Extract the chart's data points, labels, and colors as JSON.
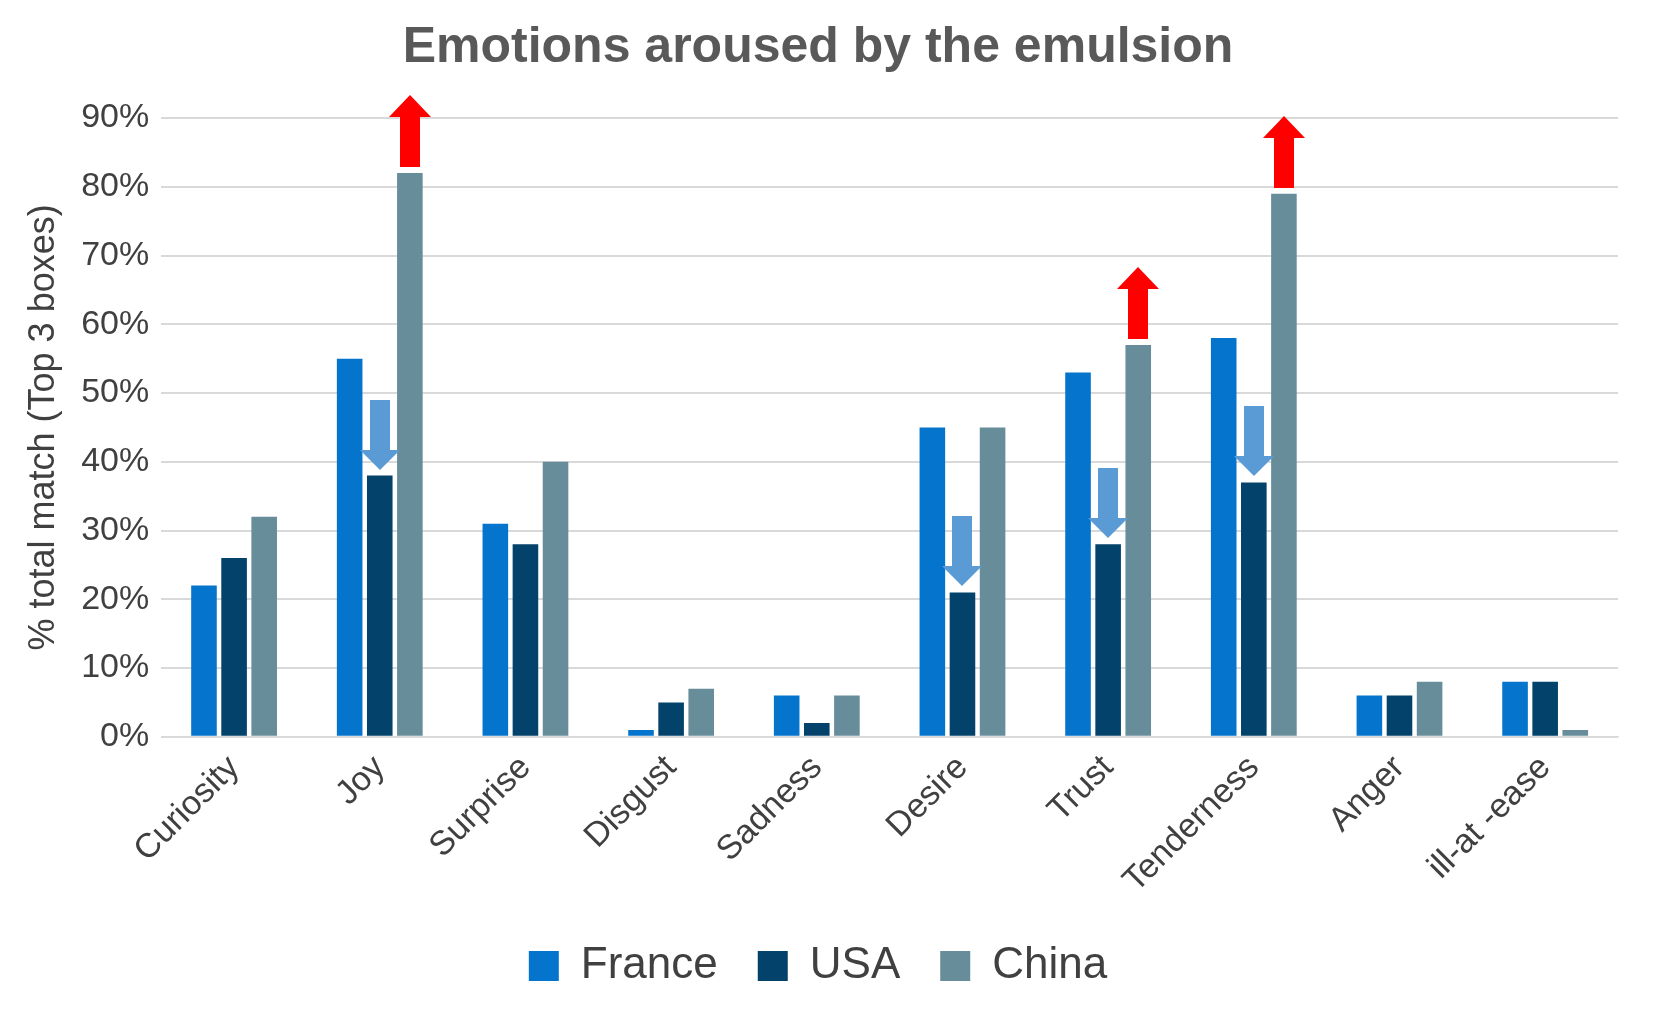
{
  "chart_data": {
    "type": "bar",
    "title": "Emotions aroused by the emulsion",
    "ylabel": "% total match (Top 3 boxes)",
    "categories": [
      "Curiosity",
      "Joy",
      "Surprise",
      "Disgust",
      "Sadness",
      "Desire",
      "Trust",
      "Tenderness",
      "Anger",
      "ill-at -ease"
    ],
    "series": [
      {
        "name": "France",
        "color": "#0474cc",
        "values": [
          22,
          55,
          31,
          1,
          6,
          45,
          53,
          58,
          6,
          8
        ]
      },
      {
        "name": "USA",
        "color": "#03426a",
        "values": [
          26,
          38,
          28,
          5,
          2,
          21,
          28,
          37,
          6,
          8
        ]
      },
      {
        "name": "China",
        "color": "#678d9b",
        "values": [
          32,
          82,
          40,
          7,
          6,
          45,
          57,
          79,
          8,
          1
        ]
      }
    ],
    "ylim": [
      0,
      90
    ],
    "yticks": [
      {
        "value": 0,
        "label": "0%"
      },
      {
        "value": 10,
        "label": "10%"
      },
      {
        "value": 20,
        "label": "20%"
      },
      {
        "value": 30,
        "label": "30%"
      },
      {
        "value": 40,
        "label": "40%"
      },
      {
        "value": 50,
        "label": "50%"
      },
      {
        "value": 60,
        "label": "60%"
      },
      {
        "value": 70,
        "label": "70%"
      },
      {
        "value": 80,
        "label": "80%"
      },
      {
        "value": 90,
        "label": "90%"
      }
    ],
    "grid": "y",
    "legend": "bottom"
  }
}
